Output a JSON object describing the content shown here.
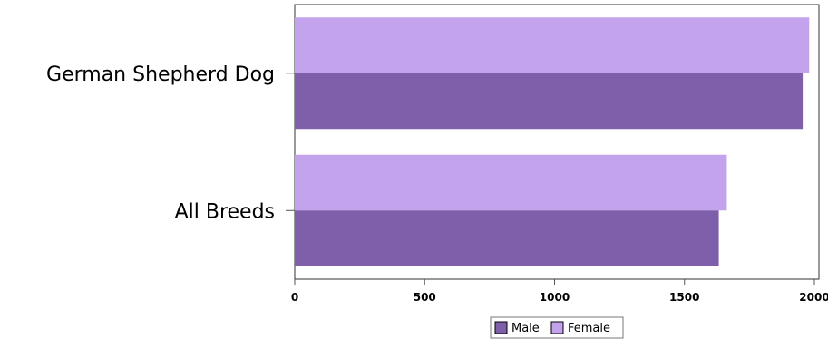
{
  "chart_data": {
    "type": "bar",
    "orientation": "horizontal",
    "categories": [
      "German Shepherd Dog",
      "All Breeds"
    ],
    "series": [
      {
        "name": "Male",
        "values": [
          1955,
          1632
        ],
        "color": "#7F5FA9"
      },
      {
        "name": "Female",
        "values": [
          1980,
          1663
        ],
        "color": "#C3A3EC"
      }
    ],
    "xlim": [
      0,
      2000
    ],
    "xticks": [
      0,
      500,
      1000,
      1500,
      2000
    ],
    "title": "",
    "xlabel": "",
    "ylabel": "",
    "grid": false,
    "legend_position": "bottom"
  }
}
